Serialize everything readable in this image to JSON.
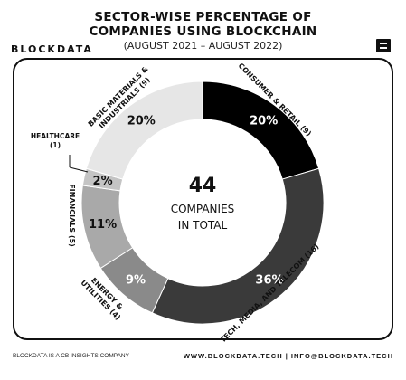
{
  "header": {
    "title_line1": "SECTOR-WISE PERCENTAGE OF",
    "title_line2": "COMPANIES USING BLOCKCHAIN",
    "subtitle": "(AUGUST 2021 – AUGUST 2022)",
    "brand": "BLOCKDATA"
  },
  "center": {
    "value": "44",
    "line1": "COMPANIES",
    "line2": "IN TOTAL"
  },
  "footer": {
    "left": "BLOCKDATA IS A CB INSIGHTS COMPANY",
    "right": "WWW.BLOCKDATA.TECH | INFO@BLOCKDATA.TECH"
  },
  "colors": {
    "consumer": "#000000",
    "tech": "#3a3a3a",
    "energy": "#8a8a8a",
    "financials": "#a9a9a9",
    "healthcare": "#c4c4c4",
    "basic": "#e6e6e6"
  },
  "chart_data": {
    "type": "donut",
    "total": 44,
    "slices": [
      {
        "key": "consumer",
        "label": "CONSUMER & RETAIL (9)",
        "count": 9,
        "pct_label": "20%",
        "percent": 20
      },
      {
        "key": "tech",
        "label": "TECH, MEDIA, AND TELECOM (16)",
        "count": 16,
        "pct_label": "36%",
        "percent": 36
      },
      {
        "key": "energy",
        "label": "ENERGY & UTILITIES (4)",
        "label_lines": [
          "ENERGY &",
          "UTILITIES (4)"
        ],
        "count": 4,
        "pct_label": "9%",
        "percent": 9
      },
      {
        "key": "financials",
        "label": "FINANCIALS (5)",
        "count": 5,
        "pct_label": "11%",
        "percent": 11
      },
      {
        "key": "healthcare",
        "label": "HEALTHCARE (1)",
        "label_lines": [
          "HEALTHCARE",
          "(1)"
        ],
        "count": 1,
        "pct_label": "2%",
        "percent": 2
      },
      {
        "key": "basic",
        "label": "BASIC MATERIALS & INDUSTRIALS (9)",
        "label_lines": [
          "BASIC MATERIALS &",
          "INDUSTRIALS (9)"
        ],
        "count": 9,
        "pct_label": "20%",
        "percent": 20
      }
    ]
  }
}
